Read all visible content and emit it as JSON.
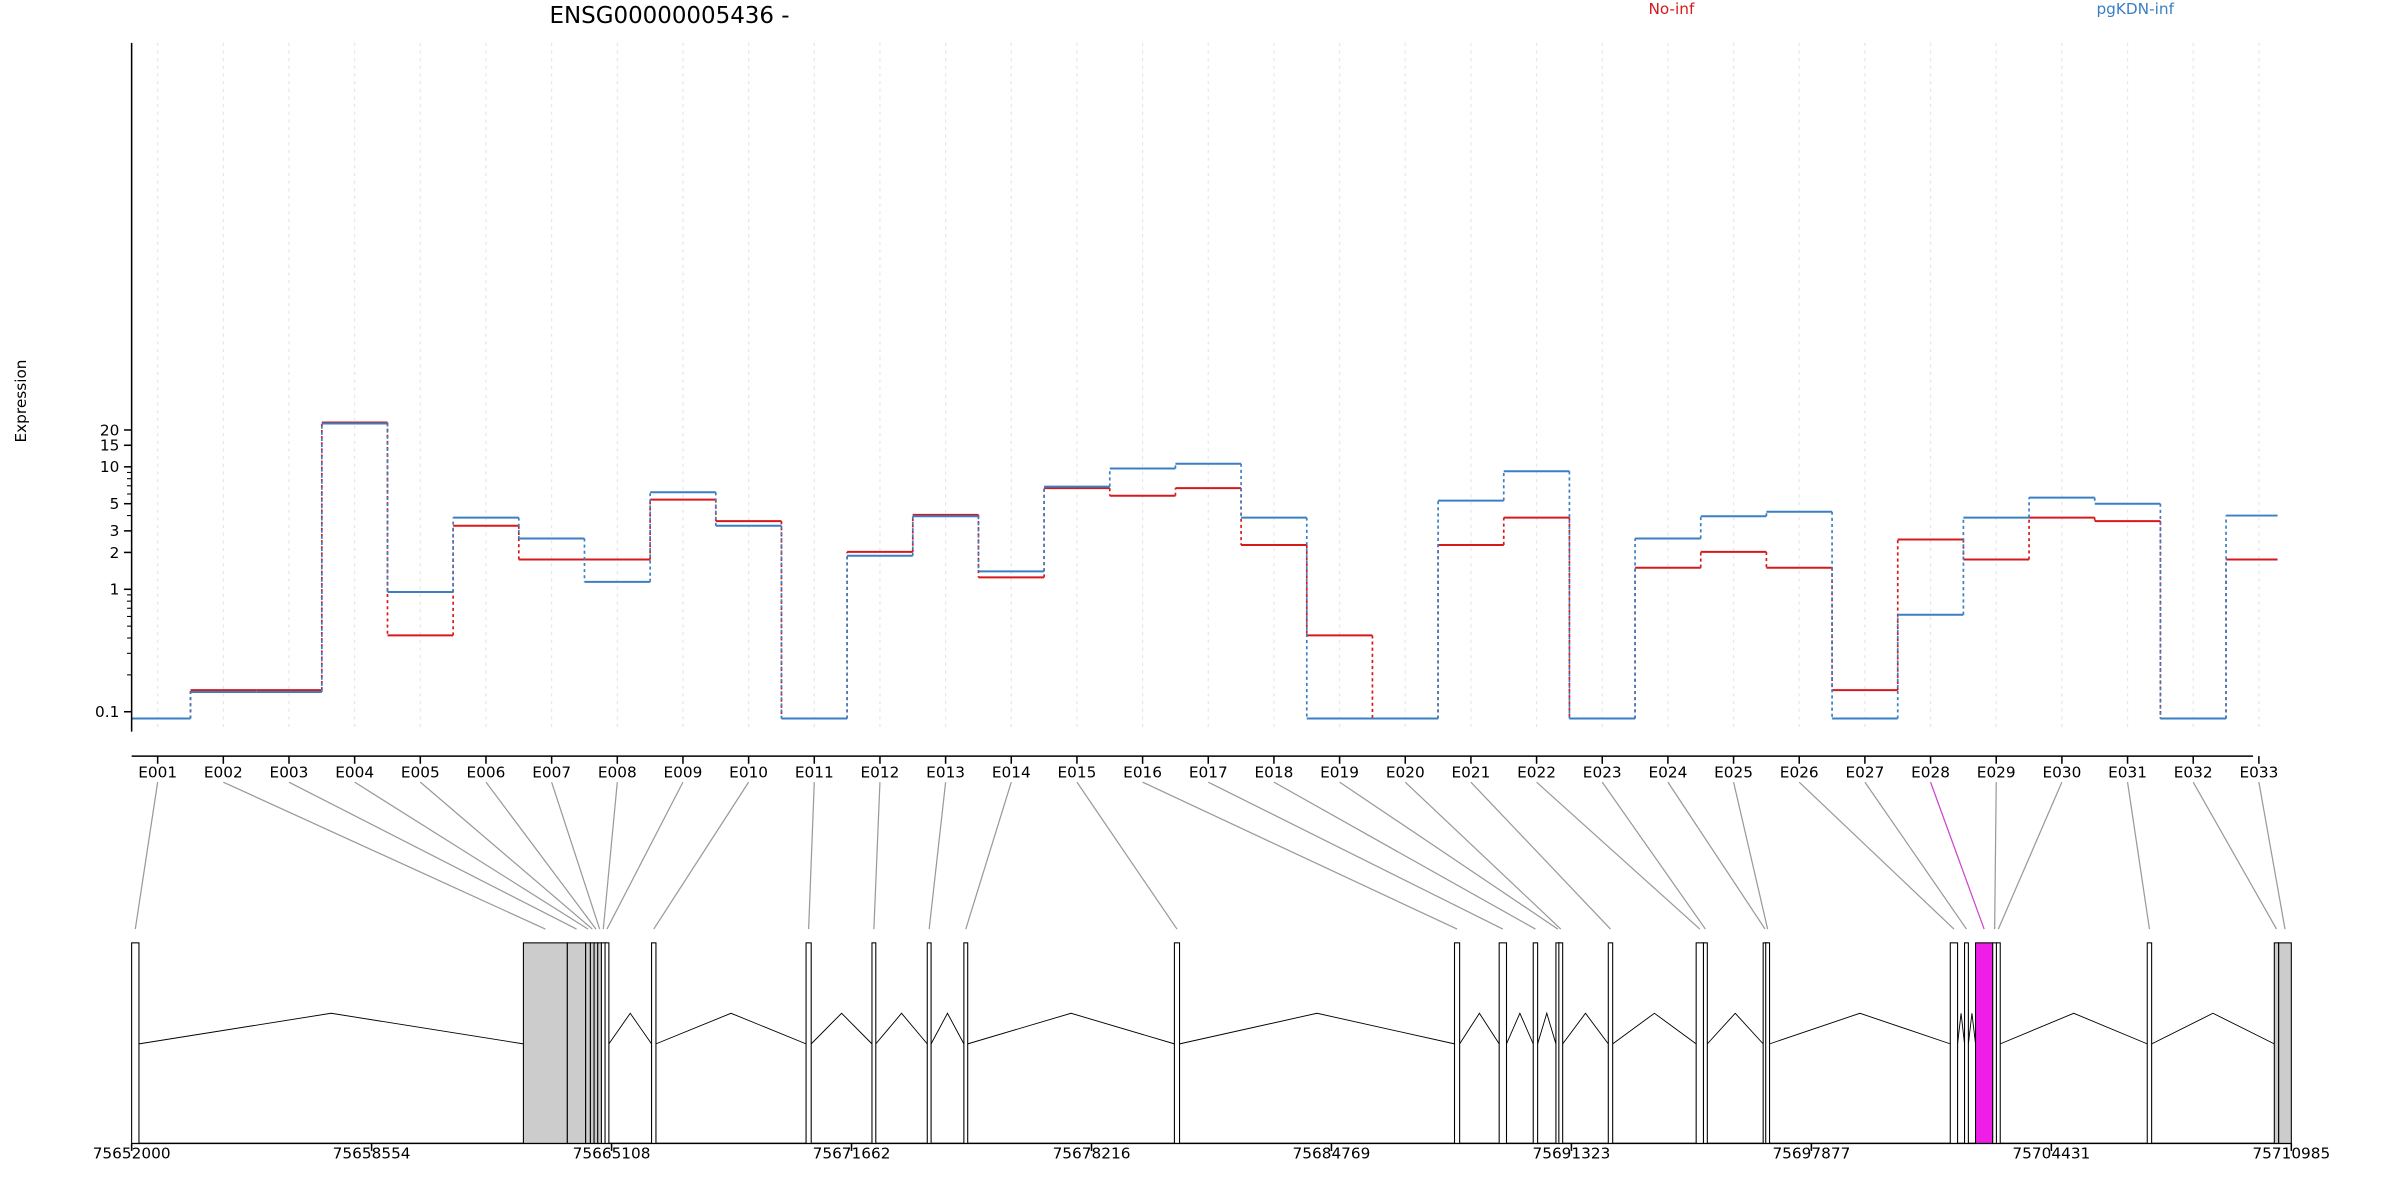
{
  "chart_data": {
    "type": "line",
    "title": "ENSG00000005436 -",
    "ylabel": "Expression",
    "xlabel": "",
    "y_scale": "log",
    "ylim": [
      0.085,
      26
    ],
    "y_ticks": [
      0.1,
      1,
      2,
      3,
      5,
      10,
      15,
      20
    ],
    "y_tick_labels": [
      "0.1",
      "1",
      "2",
      "3",
      "5",
      "10",
      "15",
      "20"
    ],
    "grid": "faint vertical lines at exon positions",
    "legend_position": "top",
    "categories": [
      "E001",
      "E002",
      "E003",
      "E004",
      "E005",
      "E006",
      "E007",
      "E008",
      "E009",
      "E010",
      "E011",
      "E012",
      "E013",
      "E014",
      "E015",
      "E016",
      "E017",
      "E018",
      "E019",
      "E020",
      "E021",
      "E022",
      "E023",
      "E024",
      "E025",
      "E026",
      "E027",
      "E028",
      "E029",
      "E030",
      "E031",
      "E032",
      "E033"
    ],
    "series": [
      {
        "name": "No-inf",
        "color": "#d7191c",
        "values": [
          0.088,
          0.15,
          0.15,
          23.0,
          0.42,
          3.3,
          1.75,
          1.75,
          5.4,
          3.6,
          0.088,
          2.02,
          4.05,
          1.25,
          6.7,
          5.8,
          6.7,
          2.3,
          0.42,
          0.088,
          2.3,
          3.85,
          0.088,
          1.5,
          2.02,
          1.5,
          0.15,
          2.55,
          1.75,
          3.85,
          3.6,
          0.088,
          1.75
        ]
      },
      {
        "name": "pgKDN-inf",
        "color": "#3a7fc4",
        "values": [
          0.088,
          0.145,
          0.145,
          22.6,
          0.95,
          3.85,
          2.6,
          1.15,
          6.2,
          3.3,
          0.088,
          1.88,
          3.95,
          1.4,
          6.9,
          9.7,
          10.6,
          3.85,
          0.088,
          0.088,
          5.3,
          9.2,
          0.088,
          2.6,
          3.95,
          4.3,
          0.088,
          0.62,
          3.85,
          5.6,
          5.0,
          0.088,
          4.0
        ]
      }
    ],
    "highlight_exon": "E028",
    "highlight_color": "#ee1ee8",
    "gene_model": {
      "axis_range": [
        75652000,
        75710985
      ],
      "axis_ticks": [
        75652000,
        75658554,
        75665108,
        75671662,
        75678216,
        75684769,
        75691323,
        75697877,
        75704431,
        75710985
      ],
      "exons": [
        {
          "id": "E001",
          "start": 75652000,
          "end": 75652200,
          "filled": false
        },
        {
          "id": "E002",
          "start": 75662700,
          "end": 75663900,
          "filled": true
        },
        {
          "id": "E003",
          "start": 75663900,
          "end": 75664400,
          "filled": true
        },
        {
          "id": "E004",
          "start": 75664400,
          "end": 75664530,
          "filled": true
        },
        {
          "id": "E005",
          "start": 75664530,
          "end": 75664630,
          "filled": true
        },
        {
          "id": "E006",
          "start": 75664630,
          "end": 75664730,
          "filled": true
        },
        {
          "id": "E007",
          "start": 75664730,
          "end": 75664830,
          "filled": true
        },
        {
          "id": "E008",
          "start": 75664830,
          "end": 75664930,
          "filled": false
        },
        {
          "id": "E009",
          "start": 75664930,
          "end": 75665000,
          "filled": false
        },
        {
          "id": "E010",
          "start": 75666200,
          "end": 75666320,
          "filled": false
        },
        {
          "id": "E011",
          "start": 75670420,
          "end": 75670560,
          "filled": false
        },
        {
          "id": "E012",
          "start": 75672220,
          "end": 75672310,
          "filled": false
        },
        {
          "id": "E013",
          "start": 75673730,
          "end": 75673830,
          "filled": false
        },
        {
          "id": "E014",
          "start": 75674730,
          "end": 75674830,
          "filled": false
        },
        {
          "id": "E015",
          "start": 75680480,
          "end": 75680620,
          "filled": false
        },
        {
          "id": "E016",
          "start": 75688130,
          "end": 75688270,
          "filled": false
        },
        {
          "id": "E017",
          "start": 75689350,
          "end": 75689550,
          "filled": false
        },
        {
          "id": "E018",
          "start": 75690280,
          "end": 75690400,
          "filled": false
        },
        {
          "id": "E019",
          "start": 75690900,
          "end": 75690980,
          "filled": false
        },
        {
          "id": "E020",
          "start": 75690980,
          "end": 75691070,
          "filled": false
        },
        {
          "id": "E021",
          "start": 75692330,
          "end": 75692450,
          "filled": false
        },
        {
          "id": "E022",
          "start": 75694730,
          "end": 75694930,
          "filled": false
        },
        {
          "id": "E023",
          "start": 75694930,
          "end": 75695010,
          "filled": false
        },
        {
          "id": "E024",
          "start": 75696560,
          "end": 75696630,
          "filled": false
        },
        {
          "id": "E025",
          "start": 75696630,
          "end": 75696690,
          "filled": false
        },
        {
          "id": "E026",
          "start": 75701670,
          "end": 75701870,
          "filled": false
        },
        {
          "id": "E027",
          "start": 75702060,
          "end": 75702150,
          "filled": false
        },
        {
          "id": "E028",
          "start": 75702360,
          "end": 75702830,
          "filled": true
        },
        {
          "id": "E029",
          "start": 75702830,
          "end": 75702930,
          "filled": false
        },
        {
          "id": "E030",
          "start": 75702930,
          "end": 75703030,
          "filled": false
        },
        {
          "id": "E031",
          "start": 75707050,
          "end": 75707170,
          "filled": false
        },
        {
          "id": "E032",
          "start": 75710520,
          "end": 75710640,
          "filled": true
        },
        {
          "id": "E033",
          "start": 75710640,
          "end": 75710985,
          "filled": true
        }
      ]
    }
  }
}
